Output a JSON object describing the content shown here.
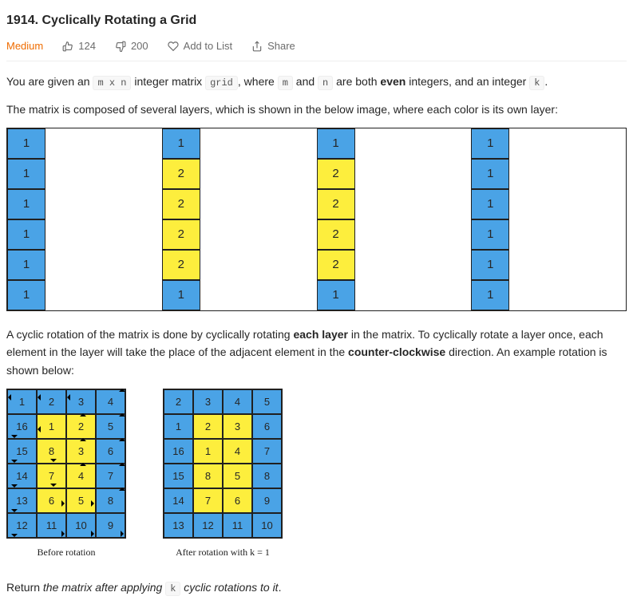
{
  "title": "1914. Cyclically Rotating a Grid",
  "difficulty": "Medium",
  "likes": "124",
  "dislikes": "200",
  "add_to_list": "Add to List",
  "share": "Share",
  "colors": {
    "outer": "#4aa3e6",
    "inner": "#fdee3d",
    "border": "#202020",
    "difficulty": "#ef6c00",
    "meta_text": "#6c6c6c"
  },
  "p1": {
    "t1": "You are given an ",
    "c1": "m x n",
    "t2": " integer matrix ",
    "c2": "grid",
    "t3": ", where ",
    "c3": "m",
    "t4": " and ",
    "c4": "n",
    "t5": " are both ",
    "b1": "even",
    "t6": " integers, and an integer ",
    "c5": "k",
    "t7": "."
  },
  "p2": "The matrix is composed of several layers, which is shown in the below image, where each color is its own layer:",
  "p3": {
    "t1": "A cyclic rotation of the matrix is done by cyclically rotating ",
    "b1": "each layer",
    "t2": " in the matrix. To cyclically rotate a layer once, each element in the layer will take the place of the adjacent element in the ",
    "b2": "counter-clockwise",
    "t3": " direction. An example rotation is shown below:"
  },
  "p4": {
    "t1": "Return ",
    "e1": "the matrix after applying ",
    "c1": "k",
    "e2": " cyclic rotations to it",
    "t2": "."
  },
  "grid1": {
    "rows": 6,
    "cols": 4,
    "cells": [
      [
        {
          "v": "1",
          "c": "blue"
        },
        {
          "v": "1",
          "c": "blue"
        },
        {
          "v": "1",
          "c": "blue"
        },
        {
          "v": "1",
          "c": "blue"
        }
      ],
      [
        {
          "v": "1",
          "c": "blue"
        },
        {
          "v": "2",
          "c": "yellow"
        },
        {
          "v": "2",
          "c": "yellow"
        },
        {
          "v": "1",
          "c": "blue"
        }
      ],
      [
        {
          "v": "1",
          "c": "blue"
        },
        {
          "v": "2",
          "c": "yellow"
        },
        {
          "v": "2",
          "c": "yellow"
        },
        {
          "v": "1",
          "c": "blue"
        }
      ],
      [
        {
          "v": "1",
          "c": "blue"
        },
        {
          "v": "2",
          "c": "yellow"
        },
        {
          "v": "2",
          "c": "yellow"
        },
        {
          "v": "1",
          "c": "blue"
        }
      ],
      [
        {
          "v": "1",
          "c": "blue"
        },
        {
          "v": "2",
          "c": "yellow"
        },
        {
          "v": "2",
          "c": "yellow"
        },
        {
          "v": "1",
          "c": "blue"
        }
      ],
      [
        {
          "v": "1",
          "c": "blue"
        },
        {
          "v": "1",
          "c": "blue"
        },
        {
          "v": "1",
          "c": "blue"
        },
        {
          "v": "1",
          "c": "blue"
        }
      ]
    ]
  },
  "before": {
    "caption": "Before rotation",
    "rows": 6,
    "cols": 4,
    "cells": [
      [
        {
          "v": "1",
          "c": "blue",
          "a": "left"
        },
        {
          "v": "2",
          "c": "blue",
          "a": "left"
        },
        {
          "v": "3",
          "c": "blue",
          "a": "left"
        },
        {
          "v": "4",
          "c": "blue",
          "a": "up"
        }
      ],
      [
        {
          "v": "16",
          "c": "blue",
          "a": "down"
        },
        {
          "v": "1",
          "c": "yellow",
          "a": "left"
        },
        {
          "v": "2",
          "c": "yellow",
          "a": "up"
        },
        {
          "v": "5",
          "c": "blue",
          "a": "up"
        }
      ],
      [
        {
          "v": "15",
          "c": "blue",
          "a": "down"
        },
        {
          "v": "8",
          "c": "yellow",
          "a": "down"
        },
        {
          "v": "3",
          "c": "yellow",
          "a": "up"
        },
        {
          "v": "6",
          "c": "blue",
          "a": "up"
        }
      ],
      [
        {
          "v": "14",
          "c": "blue",
          "a": "down"
        },
        {
          "v": "7",
          "c": "yellow",
          "a": "down"
        },
        {
          "v": "4",
          "c": "yellow",
          "a": "up"
        },
        {
          "v": "7",
          "c": "blue",
          "a": "up"
        }
      ],
      [
        {
          "v": "13",
          "c": "blue",
          "a": "down"
        },
        {
          "v": "6",
          "c": "yellow",
          "a": "right"
        },
        {
          "v": "5",
          "c": "yellow",
          "a": "right"
        },
        {
          "v": "8",
          "c": "blue",
          "a": "up"
        }
      ],
      [
        {
          "v": "12",
          "c": "blue",
          "a": "down"
        },
        {
          "v": "11",
          "c": "blue",
          "a": "right"
        },
        {
          "v": "10",
          "c": "blue",
          "a": "right"
        },
        {
          "v": "9",
          "c": "blue",
          "a": "right"
        }
      ]
    ]
  },
  "after": {
    "caption": "After rotation with k = 1",
    "rows": 6,
    "cols": 4,
    "cells": [
      [
        {
          "v": "2",
          "c": "blue"
        },
        {
          "v": "3",
          "c": "blue"
        },
        {
          "v": "4",
          "c": "blue"
        },
        {
          "v": "5",
          "c": "blue"
        }
      ],
      [
        {
          "v": "1",
          "c": "blue"
        },
        {
          "v": "2",
          "c": "yellow"
        },
        {
          "v": "3",
          "c": "yellow"
        },
        {
          "v": "6",
          "c": "blue"
        }
      ],
      [
        {
          "v": "16",
          "c": "blue"
        },
        {
          "v": "1",
          "c": "yellow"
        },
        {
          "v": "4",
          "c": "yellow"
        },
        {
          "v": "7",
          "c": "blue"
        }
      ],
      [
        {
          "v": "15",
          "c": "blue"
        },
        {
          "v": "8",
          "c": "yellow"
        },
        {
          "v": "5",
          "c": "yellow"
        },
        {
          "v": "8",
          "c": "blue"
        }
      ],
      [
        {
          "v": "14",
          "c": "blue"
        },
        {
          "v": "7",
          "c": "yellow"
        },
        {
          "v": "6",
          "c": "yellow"
        },
        {
          "v": "9",
          "c": "blue"
        }
      ],
      [
        {
          "v": "13",
          "c": "blue"
        },
        {
          "v": "12",
          "c": "blue"
        },
        {
          "v": "11",
          "c": "blue"
        },
        {
          "v": "10",
          "c": "blue"
        }
      ]
    ]
  }
}
